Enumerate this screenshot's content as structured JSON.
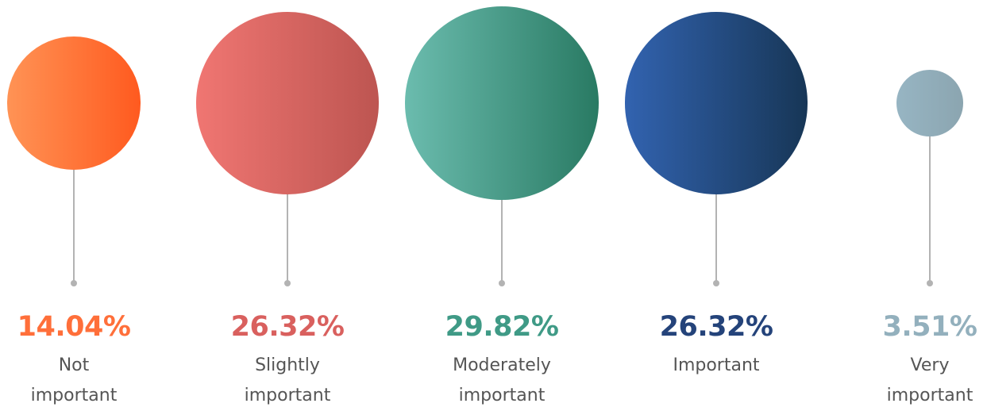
{
  "chart_data": {
    "type": "bubble",
    "title": "",
    "categories": [
      "Not important",
      "Slightly important",
      "Moderately important",
      "Important",
      "Very important"
    ],
    "category_lines": [
      [
        "Not",
        "important"
      ],
      [
        "Slightly",
        "important"
      ],
      [
        "Moderately",
        "important"
      ],
      [
        "Important"
      ],
      [
        "Very",
        "important"
      ]
    ],
    "values": [
      14.04,
      26.32,
      29.82,
      26.32,
      3.51
    ],
    "value_labels": [
      "14.04%",
      "26.32%",
      "29.82%",
      "26.32%",
      "3.51%"
    ],
    "unit": "%",
    "colors": [
      {
        "from": "#ff9355",
        "to": "#ff5a1f"
      },
      {
        "from": "#f07672",
        "to": "#bd5551"
      },
      {
        "from": "#6bbcae",
        "to": "#297a63"
      },
      {
        "from": "#3263b0",
        "to": "#173656"
      },
      {
        "from": "#97b5c3",
        "to": "#8ba5b0"
      }
    ],
    "label_colors": [
      "#ff6f3a",
      "#d9605e",
      "#3f9a86",
      "#24437a",
      "#93b0bd"
    ]
  }
}
